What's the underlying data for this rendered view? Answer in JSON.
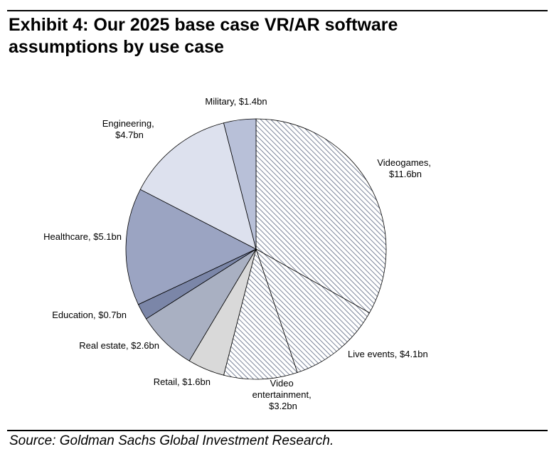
{
  "chart_data": {
    "type": "pie",
    "title": "Exhibit 4: Our 2025 base case VR/AR software assumptions by use case",
    "source": "Source: Goldman Sachs Global Investment Research.",
    "values": [
      11.6,
      4.1,
      3.2,
      1.6,
      2.6,
      0.7,
      5.1,
      4.7,
      1.4
    ],
    "value_labels": [
      "Videogames, $11.6bn",
      "Live events, $4.1bn",
      "Video entertainment, $3.2bn",
      "Retail, $1.6bn",
      "Real estate, $2.6bn",
      "Education, $0.7bn",
      "Healthcare, $5.1bn",
      "Engineering, $4.7bn",
      "Military, $1.4bn"
    ],
    "colors": [
      "#ffffff",
      "#ffffff",
      "#ffffff",
      "#d9d9d9",
      "#a9b0c2",
      "#7b86a8",
      "#9ba4c2",
      "#dde1ee",
      "#b8c0d8"
    ],
    "hatched": [
      true,
      true,
      true,
      false,
      false,
      false,
      false,
      false,
      false
    ]
  }
}
